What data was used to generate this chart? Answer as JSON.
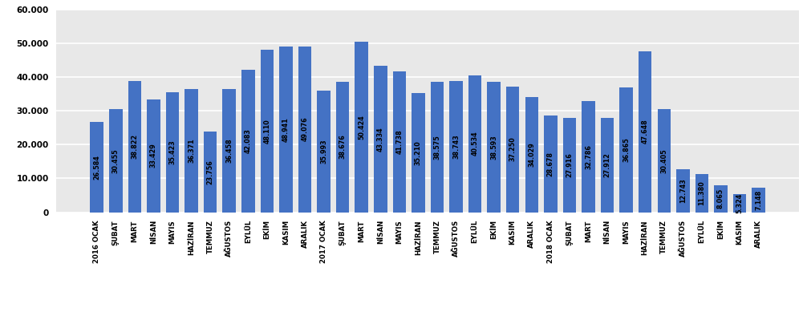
{
  "categories": [
    "2016 OCAK",
    "ŞUBAT",
    "MART",
    "NİSAN",
    "MAYIS",
    "HAZİRAN",
    "TEMMUZ",
    "AĞUSTOS",
    "EYLÜL",
    "EKİM",
    "KASIM",
    "ARALIK",
    "2017 OCAK",
    "ŞUBAT",
    "MART",
    "NİSAN",
    "MAYIS",
    "HAZİRAN",
    "TEMMUZ",
    "AĞUSTOS",
    "EYLÜL",
    "EKİM",
    "KASIM",
    "ARALIK",
    "2018 OCAK",
    "ŞUBAT",
    "MART",
    "NİSAN",
    "MAYIS",
    "HAZİRAN",
    "TEMMUZ",
    "AĞUSTOS",
    "EYLÜL",
    "EKİM",
    "KASIM",
    "ARALIK"
  ],
  "values": [
    26584,
    30455,
    38822,
    33429,
    35423,
    36371,
    23756,
    36458,
    42083,
    48110,
    48941,
    49076,
    35993,
    38676,
    50424,
    43334,
    41738,
    35210,
    38575,
    38743,
    40534,
    38593,
    37250,
    34029,
    28678,
    27916,
    32786,
    27912,
    36865,
    47648,
    30405,
    12743,
    11380,
    8065,
    5324,
    7148
  ],
  "bar_color": "#4472C4",
  "bg_color": "#E8E8E8",
  "fig_bg_color": "#FFFFFF",
  "ylim": [
    0,
    60000
  ],
  "yticks": [
    0,
    10000,
    20000,
    30000,
    40000,
    50000,
    60000
  ],
  "ytick_labels": [
    "0",
    "10.000",
    "20.000",
    "30.000",
    "40.000",
    "50.000",
    "60.000"
  ],
  "value_fontsize": 5.8,
  "label_fontsize": 6.2,
  "grid_color": "#FFFFFF",
  "bar_width": 0.7
}
